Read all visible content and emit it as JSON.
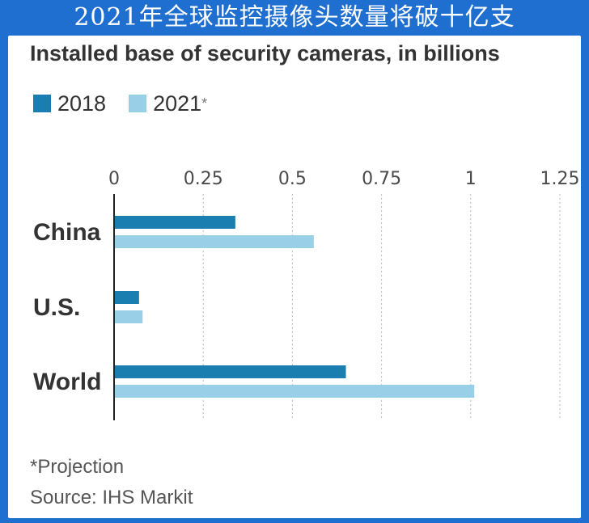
{
  "banner_title": "2021年全球监控摄像头数量将破十亿支",
  "chart_data": {
    "type": "bar",
    "orientation": "horizontal",
    "title": "Installed base of security cameras, in billions",
    "categories": [
      "China",
      "U.S.",
      "World"
    ],
    "series": [
      {
        "name": "2018",
        "legend_label": "2018",
        "color": "#1a7fb0",
        "values": [
          0.34,
          0.07,
          0.65
        ]
      },
      {
        "name": "2021*",
        "legend_label": "2021",
        "legend_suffix": "*",
        "color": "#9acfe8",
        "values": [
          0.56,
          0.08,
          1.01
        ]
      }
    ],
    "ticks": [
      "0",
      "0.25",
      "0.5",
      "0.75",
      "1",
      "1.25"
    ],
    "tick_values": [
      0,
      0.25,
      0.5,
      0.75,
      1,
      1.25
    ],
    "xlim": [
      0,
      1.25
    ],
    "grid": true,
    "legend_position": "top-left",
    "note": "*Projection",
    "source": "Source: IHS Markit"
  },
  "colors": {
    "background": "#1e6fd0",
    "card": "#ffffff",
    "grid": "#b8b8b8"
  }
}
